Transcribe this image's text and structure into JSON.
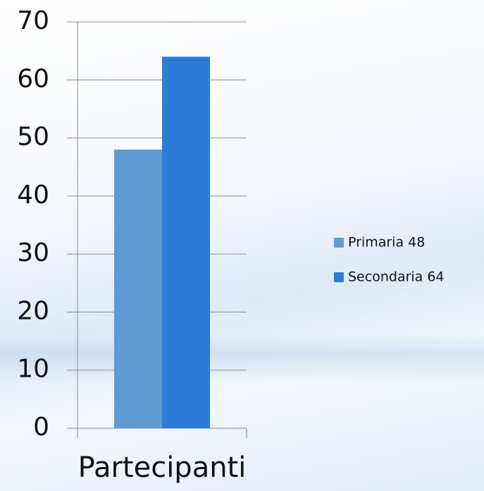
{
  "chart_data": {
    "type": "bar",
    "categories": [
      "Partecipanti"
    ],
    "series": [
      {
        "name": "Primaria 48",
        "color": "#5f9bd1",
        "values": [
          48
        ]
      },
      {
        "name": "Secondaria 64",
        "color": "#2b7cd6",
        "values": [
          64
        ]
      }
    ],
    "ylim": [
      0,
      70
    ],
    "yticks": [
      0,
      10,
      20,
      30,
      40,
      50,
      60,
      70
    ],
    "grid": true,
    "legend": "right"
  }
}
